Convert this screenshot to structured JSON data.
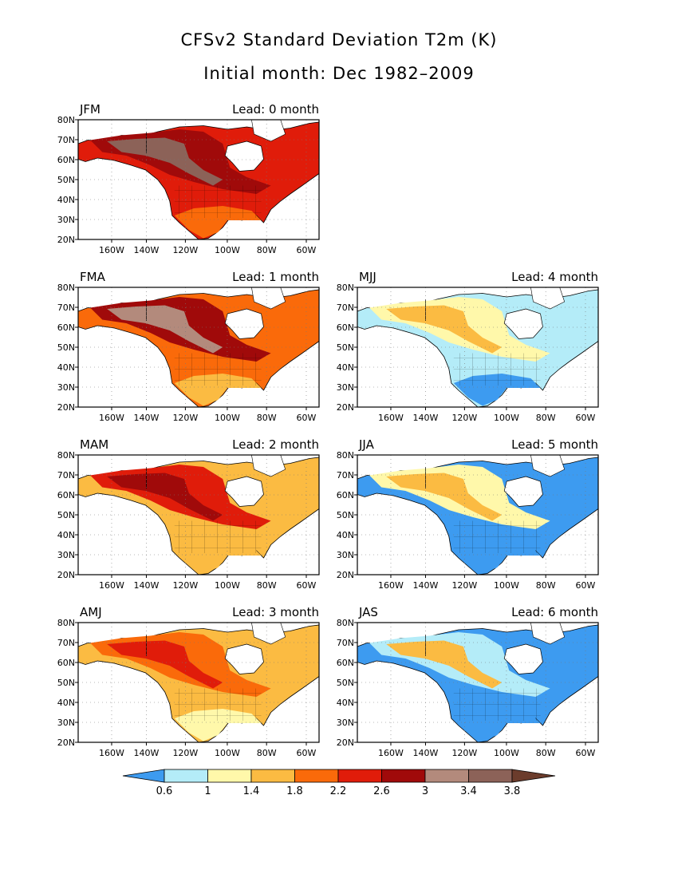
{
  "title": "CFSv2 Standard Deviation T2m (K)",
  "subtitle": "Initial month: Dec 1982–2009",
  "lat_ticks": [
    "80N",
    "70N",
    "60N",
    "50N",
    "40N",
    "30N",
    "20N"
  ],
  "lon_ticks": [
    "160W",
    "140W",
    "120W",
    "100W",
    "80W",
    "60W"
  ],
  "panels": [
    {
      "season": "JFM",
      "lead": "Lead: 0 month",
      "level": 3.0
    },
    {
      "season": "FMA",
      "lead": "Lead: 1 month",
      "level": 2.8
    },
    {
      "season": "MJJ",
      "lead": "Lead: 4 month",
      "level": 1.4
    },
    {
      "season": "MAM",
      "lead": "Lead: 2 month",
      "level": 2.4
    },
    {
      "season": "JJA",
      "lead": "Lead: 5 month",
      "level": 1.1
    },
    {
      "season": "AMJ",
      "lead": "Lead: 3 month",
      "level": 2.0
    },
    {
      "season": "JAS",
      "lead": "Lead: 6 month",
      "level": 1.0
    }
  ],
  "colorbar": {
    "labels": [
      "0.6",
      "1",
      "1.4",
      "1.8",
      "2.2",
      "2.6",
      "3",
      "3.4",
      "3.8"
    ],
    "colors": [
      "#3d9bf0",
      "#b4ecf8",
      "#fff8aa",
      "#fbbb42",
      "#fa6a0a",
      "#e01c0a",
      "#a00a0a",
      "#b38a7c",
      "#8c6258",
      "#6b3c2c"
    ]
  }
}
